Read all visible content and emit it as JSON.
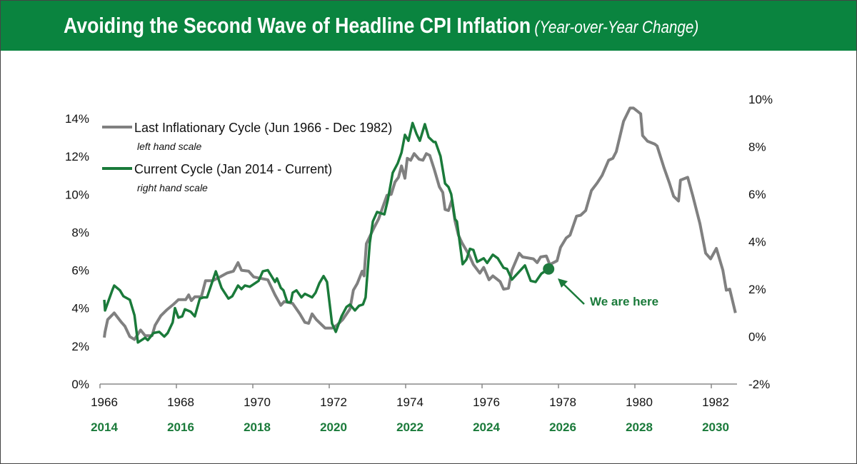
{
  "title": {
    "main": "Avoiding the Second Wave of Headline CPI Inflation",
    "sub": "(Year-over-Year Change)"
  },
  "colors": {
    "brand": "#0a843f",
    "last_cycle": "#808080",
    "current_cycle": "#1a7a3a"
  },
  "chart_data": {
    "type": "line",
    "grid": false,
    "legend_position": "top-left",
    "left_axis": {
      "ylim": [
        0,
        14
      ],
      "ticks": [
        "0%",
        "2%",
        "4%",
        "6%",
        "8%",
        "10%",
        "12%",
        "14%"
      ]
    },
    "right_axis": {
      "ylim": [
        -2,
        10
      ],
      "ticks": [
        "-2%",
        "0%",
        "2%",
        "4%",
        "6%",
        "8%",
        "10%"
      ]
    },
    "x_axis_last": {
      "ticks": [
        "1966",
        "1968",
        "1970",
        "1972",
        "1974",
        "1976",
        "1978",
        "1980",
        "1982"
      ]
    },
    "x_axis_current": {
      "ticks": [
        "2014",
        "2016",
        "2018",
        "2020",
        "2022",
        "2024",
        "2026",
        "2028",
        "2030"
      ]
    },
    "series": [
      {
        "name": "Last Inflationary Cycle (Jun 1966 - Dec 1982)",
        "note": "left hand scale",
        "axis": "left",
        "x": [
          1966.0,
          1966.02,
          1966.09,
          1966.26,
          1966.45,
          1966.54,
          1966.67,
          1966.79,
          1966.95,
          1967.07,
          1967.25,
          1967.33,
          1967.48,
          1967.63,
          1967.81,
          1967.94,
          1968.13,
          1968.21,
          1968.28,
          1968.37,
          1968.54,
          1968.65,
          1968.84,
          1969.03,
          1969.21,
          1969.38,
          1969.5,
          1969.59,
          1969.78,
          1969.91,
          1970.28,
          1970.47,
          1970.62,
          1970.71,
          1970.93,
          1971.12,
          1971.25,
          1971.35,
          1971.44,
          1971.55,
          1971.78,
          1971.96,
          1972.09,
          1972.24,
          1972.43,
          1972.52,
          1972.62,
          1972.75,
          1972.8,
          1972.86,
          1973.05,
          1973.18,
          1973.31,
          1973.4,
          1973.51,
          1973.61,
          1973.7,
          1973.78,
          1973.87,
          1973.93,
          1974.02,
          1974.11,
          1974.24,
          1974.34,
          1974.43,
          1974.52,
          1974.64,
          1974.77,
          1974.86,
          1974.92,
          1975.01,
          1975.1,
          1975.18,
          1975.27,
          1975.36,
          1975.55,
          1975.66,
          1975.83,
          1975.93,
          1976.07,
          1976.17,
          1976.36,
          1976.45,
          1976.58,
          1976.67,
          1976.86,
          1976.95,
          1977.23,
          1977.33,
          1977.42,
          1977.57,
          1977.66,
          1977.85,
          1977.94,
          1978.09,
          1978.19,
          1978.36,
          1978.47,
          1978.6,
          1978.75,
          1978.9,
          1979.03,
          1979.2,
          1979.31,
          1979.4,
          1979.59,
          1979.76,
          1979.85,
          1980.04,
          1980.09,
          1980.22,
          1980.41,
          1980.47,
          1980.65,
          1980.79,
          1980.9,
          1981.03,
          1981.08,
          1981.27,
          1981.4,
          1981.59,
          1981.74,
          1981.87,
          1982.02,
          1982.19,
          1982.28,
          1982.37,
          1982.52
        ],
        "y": [
          2.45,
          2.75,
          3.4,
          3.75,
          3.25,
          3.05,
          2.5,
          2.35,
          2.85,
          2.55,
          2.55,
          3.1,
          3.6,
          3.9,
          4.2,
          4.45,
          4.45,
          4.7,
          4.4,
          4.6,
          4.6,
          5.45,
          5.45,
          5.65,
          5.85,
          5.95,
          6.4,
          6.0,
          5.95,
          5.65,
          5.5,
          4.7,
          4.15,
          4.35,
          4.25,
          3.7,
          3.25,
          3.2,
          3.7,
          3.4,
          2.95,
          2.95,
          3.1,
          3.4,
          3.95,
          4.95,
          5.3,
          5.95,
          5.7,
          7.4,
          8.2,
          8.7,
          9.45,
          9.95,
          10.0,
          10.65,
          10.9,
          11.5,
          10.85,
          11.9,
          11.8,
          12.15,
          11.85,
          11.8,
          12.15,
          12.05,
          11.3,
          10.4,
          10.1,
          9.2,
          9.15,
          9.7,
          8.6,
          7.85,
          7.45,
          6.8,
          6.3,
          5.85,
          6.15,
          5.5,
          5.7,
          5.4,
          5.0,
          5.05,
          6.0,
          6.9,
          6.7,
          6.6,
          6.4,
          6.7,
          6.75,
          6.3,
          6.5,
          7.2,
          7.7,
          7.85,
          8.85,
          8.9,
          9.15,
          10.2,
          10.6,
          11.0,
          11.8,
          11.9,
          12.25,
          13.85,
          14.55,
          14.55,
          14.25,
          13.1,
          12.8,
          12.65,
          12.55,
          11.4,
          10.6,
          9.9,
          9.65,
          10.75,
          10.9,
          9.95,
          8.45,
          6.9,
          6.6,
          7.15,
          6.0,
          4.95,
          5.0,
          3.75
        ]
      },
      {
        "name": "Current Cycle (Jan 2014 - Current)",
        "note": "right hand scale",
        "axis": "right",
        "x": [
          2014.0,
          2014.02,
          2014.21,
          2014.26,
          2014.41,
          2014.5,
          2014.67,
          2014.79,
          2014.88,
          2015.07,
          2015.14,
          2015.29,
          2015.44,
          2015.57,
          2015.66,
          2015.79,
          2015.85,
          2015.94,
          2016.04,
          2016.11,
          2016.26,
          2016.37,
          2016.5,
          2016.6,
          2016.69,
          2016.92,
          2017.07,
          2017.25,
          2017.35,
          2017.5,
          2017.59,
          2017.68,
          2017.81,
          2018.04,
          2018.15,
          2018.28,
          2018.47,
          2018.52,
          2018.62,
          2018.69,
          2018.79,
          2018.88,
          2018.93,
          2019.03,
          2019.16,
          2019.25,
          2019.44,
          2019.53,
          2019.63,
          2019.74,
          2019.83,
          2019.96,
          2020.06,
          2020.21,
          2020.34,
          2020.43,
          2020.56,
          2020.67,
          2020.77,
          2020.84,
          2020.95,
          2021.03,
          2021.14,
          2021.33,
          2021.42,
          2021.55,
          2021.68,
          2021.78,
          2021.87,
          2021.96,
          2022.07,
          2022.17,
          2022.26,
          2022.39,
          2022.49,
          2022.62,
          2022.67,
          2022.8,
          2022.92,
          2023.01,
          2023.08,
          2023.18,
          2023.23,
          2023.38,
          2023.48,
          2023.57,
          2023.66,
          2023.76,
          2023.93,
          2024.02,
          2024.17,
          2024.3,
          2024.45,
          2024.54,
          2024.67,
          2025.01,
          2025.16,
          2025.29,
          2025.44,
          2025.63
        ],
        "y": [
          1.55,
          1.1,
          1.95,
          2.15,
          1.95,
          1.7,
          1.55,
          0.9,
          -0.25,
          -0.05,
          -0.15,
          0.15,
          0.2,
          0.0,
          0.15,
          0.6,
          1.2,
          0.8,
          0.85,
          1.15,
          1.05,
          0.85,
          1.6,
          1.65,
          1.65,
          2.75,
          2.05,
          1.6,
          1.7,
          2.15,
          2.0,
          2.15,
          2.1,
          2.35,
          2.75,
          2.8,
          2.3,
          2.45,
          2.05,
          1.95,
          1.45,
          1.45,
          1.85,
          1.95,
          1.65,
          1.8,
          1.65,
          1.85,
          2.25,
          2.55,
          2.3,
          0.55,
          0.2,
          0.85,
          1.25,
          1.35,
          1.1,
          1.3,
          1.35,
          1.65,
          3.95,
          4.85,
          5.25,
          5.15,
          5.75,
          6.9,
          7.3,
          7.75,
          8.5,
          8.25,
          9.0,
          8.55,
          8.25,
          8.95,
          8.4,
          8.2,
          8.2,
          7.6,
          6.45,
          6.3,
          6.0,
          4.95,
          4.85,
          3.05,
          3.25,
          3.7,
          3.65,
          3.15,
          3.3,
          3.1,
          3.45,
          3.3,
          2.9,
          2.85,
          2.4,
          3.0,
          2.35,
          2.3,
          2.65,
          2.85
        ]
      }
    ],
    "annotation": {
      "text": "We are here",
      "series": "Current Cycle (Jan 2014 - Current)"
    }
  }
}
